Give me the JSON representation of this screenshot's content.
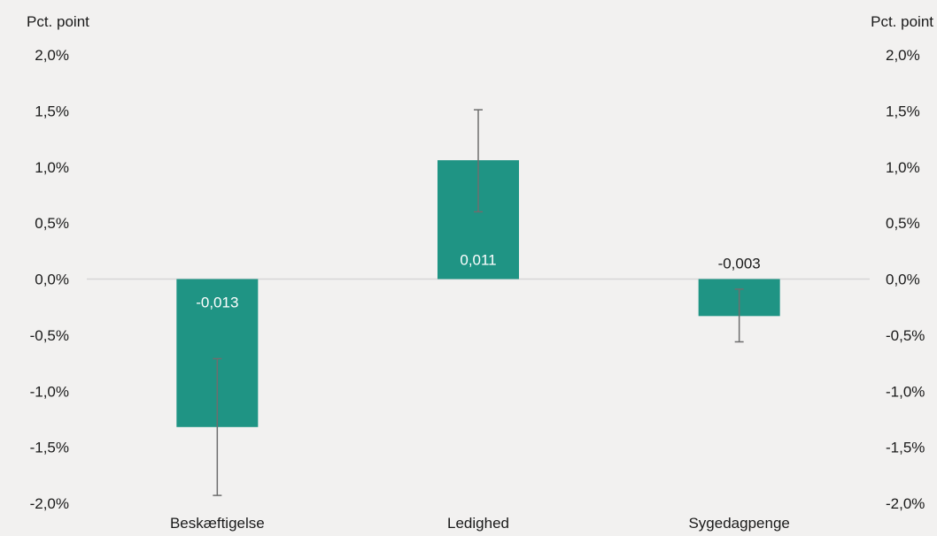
{
  "chart_data": {
    "type": "bar",
    "y_unit_label_left": "Pct. point",
    "y_unit_label_right": "Pct. point",
    "categories": [
      "Beskæftigelse",
      "Ledighed",
      "Sygedagpenge"
    ],
    "values": [
      -1.32,
      1.06,
      -0.33
    ],
    "error_low": [
      -1.93,
      0.6,
      -0.56
    ],
    "error_high": [
      -0.71,
      1.51,
      -0.09
    ],
    "data_labels": [
      "-0,013",
      "0,011",
      "-0,003"
    ],
    "ylim": [
      -2.0,
      2.0
    ],
    "yticks": [
      2.0,
      1.5,
      1.0,
      0.5,
      0.0,
      -0.5,
      -1.0,
      -1.5,
      -2.0
    ],
    "ytick_labels": [
      "2,0%",
      "1,5%",
      "1,0%",
      "0,5%",
      "0,0%",
      "-0,5%",
      "-1,0%",
      "-1,5%",
      "-2,0%"
    ],
    "grid": false,
    "colors": {
      "bar": "#1f9484",
      "error_bar": "#6e6e6e",
      "zero_line": "#d6d6d6",
      "label_inside": "#ffffff",
      "label_outside": "#1a1a1a",
      "background": "#f2f1f0"
    }
  }
}
